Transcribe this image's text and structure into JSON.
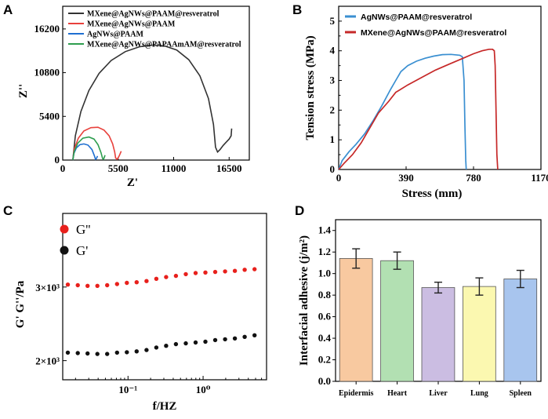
{
  "panels": {
    "a": "A",
    "b": "B",
    "c": "C",
    "d": "D"
  },
  "chart_data": [
    {
      "panel": "A",
      "type": "line",
      "xlabel": "Z'",
      "ylabel": "Z''",
      "xlim": [
        0,
        18500
      ],
      "ylim": [
        0,
        19000
      ],
      "xticks": [
        0,
        5500,
        11000,
        16500
      ],
      "yticks": [
        0,
        5400,
        10800,
        16200
      ],
      "legend_position": "top-left",
      "series": [
        {
          "name": "MXene@AgNWs@PAAM@resveratrol",
          "color": "#333333",
          "x": [
            1000,
            1250,
            1800,
            2600,
            3600,
            4800,
            6200,
            7600,
            8900,
            10100,
            11300,
            12500,
            13600,
            14450,
            14950,
            15150,
            15350,
            15600,
            15900,
            16200,
            16500,
            16700,
            16750
          ],
          "y": [
            0,
            3000,
            6000,
            8600,
            10700,
            12300,
            13400,
            14000,
            14200,
            14100,
            13600,
            12400,
            10400,
            7600,
            4400,
            1600,
            1000,
            1300,
            1800,
            2200,
            2600,
            3000,
            3900
          ]
        },
        {
          "name": "MXene@AgNWs@PAAM",
          "color": "#e8413c",
          "x": [
            1000,
            1150,
            1550,
            2100,
            2800,
            3500,
            4100,
            4600,
            4950,
            5150,
            5250,
            5400,
            5600,
            5800
          ],
          "y": [
            0,
            1400,
            2700,
            3600,
            4000,
            4050,
            3700,
            3000,
            2000,
            1000,
            250,
            100,
            500,
            1100
          ]
        },
        {
          "name": "AgNWs@PAAM",
          "color": "#1f6fd1",
          "x": [
            1000,
            1100,
            1350,
            1700,
            2100,
            2500,
            2900,
            3150,
            3250,
            3350,
            3450
          ],
          "y": [
            0,
            800,
            1500,
            1900,
            2000,
            1850,
            1300,
            500,
            100,
            200,
            500
          ]
        },
        {
          "name": "MXene@AgNWs@PAPAAmAM@resveratrol",
          "color": "#2e9e4f",
          "x": [
            1000,
            1150,
            1500,
            2000,
            2600,
            3100,
            3500,
            3800,
            3950,
            4050,
            4200
          ],
          "y": [
            0,
            1100,
            2100,
            2700,
            2850,
            2600,
            1900,
            900,
            200,
            100,
            600
          ]
        }
      ]
    },
    {
      "panel": "B",
      "type": "line",
      "xlabel": "Stress (mm)",
      "ylabel": "Tension stress (MPa)",
      "xlim": [
        0,
        1170
      ],
      "ylim": [
        0,
        5.5
      ],
      "xticks": [
        0,
        390,
        780,
        1170
      ],
      "yticks": [
        0,
        0.5,
        1,
        1.5,
        2,
        2.5,
        3,
        3.5,
        4,
        4.5,
        5
      ],
      "legend_position": "top-left",
      "series": [
        {
          "name": "AgNWs@PAAM@resveratrol",
          "color": "#3a8fd1",
          "x": [
            0,
            20,
            60,
            100,
            150,
            200,
            250,
            300,
            330,
            360,
            400,
            450,
            500,
            550,
            600,
            650,
            700,
            715,
            725,
            730,
            735,
            738
          ],
          "y": [
            0,
            0.3,
            0.6,
            0.85,
            1.2,
            1.65,
            2.15,
            2.7,
            3.0,
            3.3,
            3.5,
            3.65,
            3.75,
            3.82,
            3.87,
            3.88,
            3.85,
            3.8,
            3.0,
            1.5,
            0.3,
            0
          ]
        },
        {
          "name": "MXene@AgNWs@PAAM@resveratrol",
          "color": "#c62828",
          "x": [
            0,
            30,
            80,
            130,
            180,
            230,
            290,
            330,
            400,
            480,
            560,
            640,
            720,
            780,
            830,
            870,
            890,
            900,
            905,
            910,
            915,
            920
          ],
          "y": [
            0,
            0.2,
            0.5,
            0.9,
            1.4,
            1.9,
            2.3,
            2.6,
            2.85,
            3.1,
            3.35,
            3.55,
            3.75,
            3.9,
            4.0,
            4.05,
            4.05,
            4.0,
            3.5,
            2.0,
            0.5,
            0
          ]
        }
      ]
    },
    {
      "panel": "C",
      "type": "scatter",
      "xscale": "log",
      "yscale": "log",
      "xlabel": "f/HZ",
      "ylabel": "G' G''/Pa",
      "xlim": [
        0.0135,
        7
      ],
      "ylim": [
        1800,
        4500
      ],
      "xticks": [
        {
          "v": 0.1,
          "label": "10⁻¹"
        },
        {
          "v": 1,
          "label": "10⁰"
        }
      ],
      "yticks": [
        {
          "v": 2000,
          "label": "2×10³"
        },
        {
          "v": 3000,
          "label": "3×10³"
        }
      ],
      "legend_position": "top-left",
      "series": [
        {
          "name": "G''",
          "color": "#e8201c",
          "x": [
            0.0158,
            0.0214,
            0.0289,
            0.0391,
            0.0528,
            0.0714,
            0.0965,
            0.1304,
            0.1762,
            0.2382,
            0.3219,
            0.4351,
            0.588,
            0.7946,
            1.074,
            1.451,
            1.961,
            2.65,
            3.582,
            4.841
          ],
          "y": [
            3040,
            3030,
            3020,
            3020,
            3030,
            3050,
            3070,
            3080,
            3100,
            3140,
            3170,
            3190,
            3220,
            3240,
            3250,
            3260,
            3270,
            3280,
            3300,
            3310
          ]
        },
        {
          "name": "G'",
          "color": "#111111",
          "x": [
            0.0158,
            0.0214,
            0.0289,
            0.0391,
            0.0528,
            0.0714,
            0.0965,
            0.1304,
            0.1762,
            0.2382,
            0.3219,
            0.4351,
            0.588,
            0.7946,
            1.074,
            1.451,
            1.961,
            2.65,
            3.582,
            4.841
          ],
          "y": [
            2090,
            2085,
            2080,
            2075,
            2075,
            2090,
            2095,
            2105,
            2120,
            2150,
            2170,
            2190,
            2200,
            2210,
            2220,
            2240,
            2250,
            2260,
            2280,
            2300
          ]
        }
      ]
    },
    {
      "panel": "D",
      "type": "bar",
      "ylabel": "Interfacial adhesive (j/m²)",
      "ylim": [
        0,
        1.5
      ],
      "yticks": [
        0,
        0.2,
        0.4,
        0.6,
        0.8,
        1.0,
        1.2,
        1.4
      ],
      "categories": [
        "Epidermis",
        "Heart",
        "Liver",
        "Lung",
        "Spleen"
      ],
      "values": [
        1.14,
        1.12,
        0.87,
        0.88,
        0.95
      ],
      "errors": [
        0.09,
        0.08,
        0.05,
        0.08,
        0.08
      ],
      "colors": [
        "#f8c9a0",
        "#b2e0b2",
        "#cbbde2",
        "#fbf8b0",
        "#a8c5ee"
      ]
    }
  ]
}
